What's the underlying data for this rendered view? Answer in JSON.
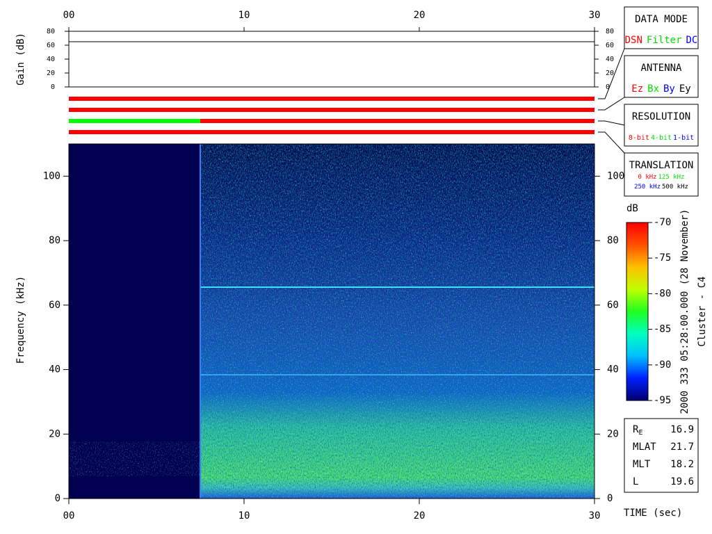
{
  "chart_data": [
    {
      "type": "line",
      "ylabel": "Gain (dB)",
      "xlim": [
        0,
        30
      ],
      "xticks": [
        {
          "value": 0,
          "label": "00"
        },
        10,
        20,
        30
      ],
      "ylim": [
        0,
        80
      ],
      "yticks": [
        0,
        20,
        40,
        60,
        80
      ],
      "x": [
        0,
        30
      ],
      "series": [
        {
          "color": "#000000",
          "values": [
            65,
            65
          ]
        }
      ]
    },
    {
      "type": "heatmap",
      "xlabel": "TIME (sec)",
      "ylabel": "Frequency (kHz)",
      "xlim": [
        0,
        30
      ],
      "xticks": [
        {
          "value": 0,
          "label": "00"
        },
        10,
        20,
        30
      ],
      "ylim": [
        0,
        110
      ],
      "yticks": [
        0,
        20,
        40,
        60,
        80,
        100
      ],
      "colorbar": {
        "label": "dB",
        "lim": [
          -95,
          -70
        ],
        "ticks": [
          -70,
          -75,
          -80,
          -85,
          -90,
          -95
        ],
        "colors": [
          "#000070",
          "#0020ff",
          "#00c0ff",
          "#00ffc0",
          "#20ff20",
          "#c0ff00",
          "#ffc000",
          "#ff5000",
          "#ff0000"
        ]
      }
    }
  ],
  "status_bars": [
    {
      "segments": [
        {
          "from": 0,
          "to": 30,
          "color": "#ff0000"
        }
      ]
    },
    {
      "segments": [
        {
          "from": 0,
          "to": 30,
          "color": "#ff0000"
        }
      ]
    },
    {
      "segments": [
        {
          "from": 0,
          "to": 7.5,
          "color": "#00ff00"
        },
        {
          "from": 7.5,
          "to": 30,
          "color": "#ff0000"
        }
      ]
    },
    {
      "segments": [
        {
          "from": 0,
          "to": 30,
          "color": "#ff0000"
        }
      ]
    }
  ],
  "panels": [
    {
      "title": "DATA MODE",
      "rows": [
        [
          {
            "text": "DSN",
            "color": "#ff0000"
          },
          {
            "text": "Filter",
            "color": "#00dd00"
          },
          {
            "text": "DC",
            "color": "#0000ff"
          }
        ]
      ]
    },
    {
      "title": "ANTENNA",
      "rows": [
        [
          {
            "text": "Ez",
            "color": "#ff0000"
          },
          {
            "text": "Bx",
            "color": "#00dd00"
          },
          {
            "text": "By",
            "color": "#0000ff"
          },
          {
            "text": "Ey",
            "color": "#000000"
          }
        ]
      ]
    },
    {
      "title": "RESOLUTION",
      "rows": [
        [
          {
            "text": "8-bit",
            "color": "#ff0000"
          },
          {
            "text": "4-bit",
            "color": "#00dd00"
          },
          {
            "text": "1-bit",
            "color": "#0000ff"
          }
        ]
      ]
    },
    {
      "title": "TRANSLATION",
      "rows": [
        [
          {
            "text": "0 kHz",
            "color": "#ff0000"
          },
          {
            "text": "125 kHz",
            "color": "#00dd00"
          }
        ],
        [
          {
            "text": "250 kHz",
            "color": "#0000ff"
          },
          {
            "text": "500 kHz",
            "color": "#000000"
          }
        ]
      ]
    }
  ],
  "orbit": [
    {
      "label": "R",
      "sub": "E",
      "value": 16.9
    },
    {
      "label": "MLAT",
      "value": 21.7
    },
    {
      "label": "MLT",
      "value": 18.2
    },
    {
      "label": "L",
      "value": 19.6
    }
  ],
  "time_stamp": "2000 333 05:28:00.000 (28 November)",
  "spacecraft": "Cluster - C4"
}
